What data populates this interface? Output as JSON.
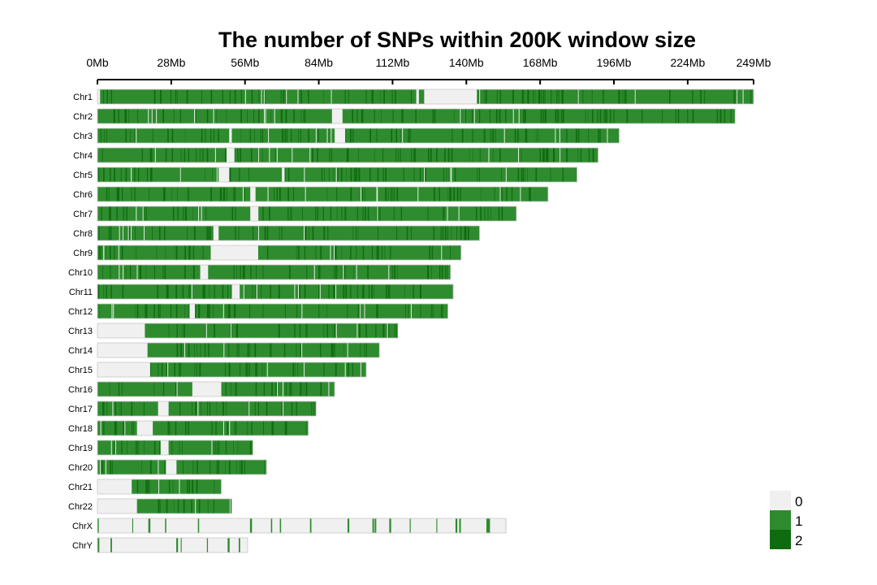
{
  "chart_data": {
    "type": "heatmap",
    "title": "The number of SNPs within 200K window size",
    "x_axis": {
      "unit": "Mb",
      "range": [
        0,
        249
      ],
      "ticks": [
        0,
        28,
        56,
        84,
        112,
        140,
        168,
        196,
        224,
        249
      ],
      "tick_labels": [
        "0Mb",
        "28Mb",
        "56Mb",
        "84Mb",
        "112Mb",
        "140Mb",
        "168Mb",
        "196Mb",
        "224Mb",
        "249Mb"
      ]
    },
    "legend": {
      "placement": "bottom-right",
      "levels": [
        {
          "label": "0",
          "color": "#f0f0f0"
        },
        {
          "label": "1",
          "color": "#2e8b2e"
        },
        {
          "label": "2",
          "color": "#0f6b0f"
        }
      ]
    },
    "chromosomes": [
      {
        "name": "Chr1",
        "length_mb": 249,
        "gaps_mb": [
          [
            0,
            1
          ],
          [
            121,
            122
          ],
          [
            124,
            144
          ]
        ]
      },
      {
        "name": "Chr2",
        "length_mb": 242,
        "gaps_mb": [
          [
            89,
            93
          ]
        ]
      },
      {
        "name": "Chr3",
        "length_mb": 198,
        "gaps_mb": [
          [
            50,
            51
          ],
          [
            90,
            94
          ]
        ]
      },
      {
        "name": "Chr4",
        "length_mb": 190,
        "gaps_mb": [
          [
            49,
            52
          ]
        ]
      },
      {
        "name": "Chr5",
        "length_mb": 182,
        "gaps_mb": [
          [
            46,
            50
          ],
          [
            70,
            71
          ]
        ]
      },
      {
        "name": "Chr6",
        "length_mb": 171,
        "gaps_mb": [
          [
            58,
            60
          ]
        ]
      },
      {
        "name": "Chr7",
        "length_mb": 159,
        "gaps_mb": [
          [
            58,
            61
          ]
        ]
      },
      {
        "name": "Chr8",
        "length_mb": 145,
        "gaps_mb": [
          [
            44,
            46
          ]
        ]
      },
      {
        "name": "Chr9",
        "length_mb": 138,
        "gaps_mb": [
          [
            43,
            61
          ]
        ]
      },
      {
        "name": "Chr10",
        "length_mb": 134,
        "gaps_mb": [
          [
            39,
            42
          ]
        ]
      },
      {
        "name": "Chr11",
        "length_mb": 135,
        "gaps_mb": [
          [
            51,
            54
          ]
        ]
      },
      {
        "name": "Chr12",
        "length_mb": 133,
        "gaps_mb": [
          [
            35,
            37
          ]
        ]
      },
      {
        "name": "Chr13",
        "length_mb": 114,
        "gaps_mb": [
          [
            0,
            18
          ]
        ]
      },
      {
        "name": "Chr14",
        "length_mb": 107,
        "gaps_mb": [
          [
            0,
            19
          ]
        ]
      },
      {
        "name": "Chr15",
        "length_mb": 102,
        "gaps_mb": [
          [
            0,
            20
          ]
        ]
      },
      {
        "name": "Chr16",
        "length_mb": 90,
        "gaps_mb": [
          [
            36,
            47
          ]
        ]
      },
      {
        "name": "Chr17",
        "length_mb": 83,
        "gaps_mb": [
          [
            23,
            27
          ]
        ]
      },
      {
        "name": "Chr18",
        "length_mb": 80,
        "gaps_mb": [
          [
            15,
            21
          ]
        ]
      },
      {
        "name": "Chr19",
        "length_mb": 59,
        "gaps_mb": [
          [
            24,
            27
          ]
        ]
      },
      {
        "name": "Chr20",
        "length_mb": 64,
        "gaps_mb": [
          [
            26,
            30
          ]
        ]
      },
      {
        "name": "Chr21",
        "length_mb": 47,
        "gaps_mb": [
          [
            0,
            13
          ]
        ]
      },
      {
        "name": "Chr22",
        "length_mb": 51,
        "gaps_mb": [
          [
            0,
            15
          ]
        ]
      },
      {
        "name": "ChrX",
        "length_mb": 155,
        "gaps_mb": [
          [
            0,
            155
          ]
        ]
      },
      {
        "name": "ChrY",
        "length_mb": 57,
        "gaps_mb": [
          [
            0,
            57
          ]
        ]
      }
    ]
  }
}
